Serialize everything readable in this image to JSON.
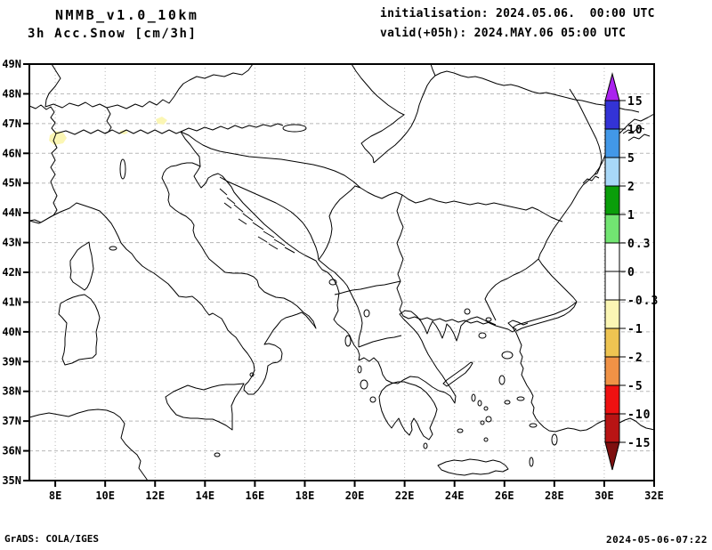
{
  "header": {
    "model_title": "NMMB_v1.0_10km",
    "field_title": "3h Acc.Snow [cm/3h]",
    "init_line": "initialisation: 2024.05.06.  00:00 UTC",
    "valid_line": "valid(+05h): 2024.MAY.06 05:00 UTC"
  },
  "footer": {
    "credit": "GrADS: COLA/IGES",
    "timestamp": "2024-05-06-07:22"
  },
  "axes": {
    "lat_labels": [
      "49N",
      "48N",
      "47N",
      "46N",
      "45N",
      "44N",
      "43N",
      "42N",
      "41N",
      "40N",
      "39N",
      "38N",
      "37N",
      "36N",
      "35N"
    ],
    "lon_labels": [
      "8E",
      "10E",
      "12E",
      "14E",
      "16E",
      "18E",
      "20E",
      "22E",
      "24E",
      "26E",
      "28E",
      "30E",
      "32E"
    ],
    "grid_color": "#b8b8b8",
    "frame_color": "#000000",
    "coast_color": "#000000"
  },
  "colorbar": {
    "unit": "cm/3h",
    "tick_labels": [
      "15",
      "10",
      "5",
      "2",
      "1",
      "0.3",
      "0",
      "-0.3",
      "-1",
      "-2",
      "-5",
      "-10",
      "-15"
    ],
    "segment_colors": [
      "#3333d6",
      "#4298e8",
      "#a8d8f8",
      "#0a9e0a",
      "#72e572",
      "#ffffff",
      "#ffffff",
      "#fbf6b4",
      "#eec452",
      "#f09246",
      "#ee1111",
      "#b81414"
    ],
    "arrow_top_color": "#aa22ee",
    "arrow_bottom_color": "#7e0f0f"
  },
  "snow_patches": {
    "color": "#fbf6b4",
    "locations": [
      "Western Alps ~7.3E,46.4N",
      "Central Alps ~10.7E,46.8N",
      "Eastern Alps ~12.2E,46.9N"
    ]
  }
}
